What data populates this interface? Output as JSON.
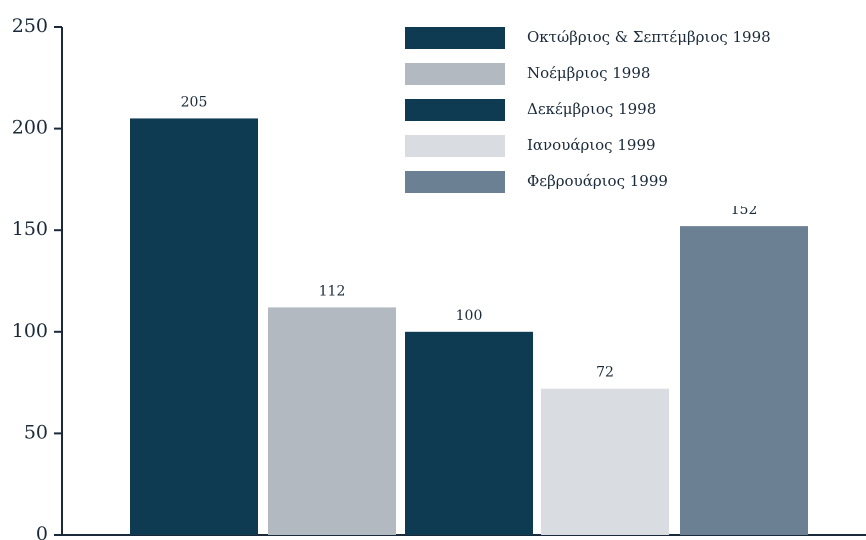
{
  "chart_data": {
    "type": "bar",
    "categories": [
      "Οκτώβριος & Σεπτέμβριος 1998",
      "Νοέμβριος 1998",
      "Δεκέμβριος 1998",
      "Ιανουάριος 1999",
      "Φεβρουάριος 1999"
    ],
    "values": [
      205,
      112,
      100,
      72,
      152
    ],
    "colors": [
      "#0e3a52",
      "#b2b9c0",
      "#0e3a52",
      "#d9dde1",
      "#6c8093"
    ],
    "ylim": [
      0,
      250
    ],
    "yticks": [
      0,
      50,
      100,
      150,
      200,
      250
    ],
    "grid": false,
    "legend": "top-right"
  }
}
